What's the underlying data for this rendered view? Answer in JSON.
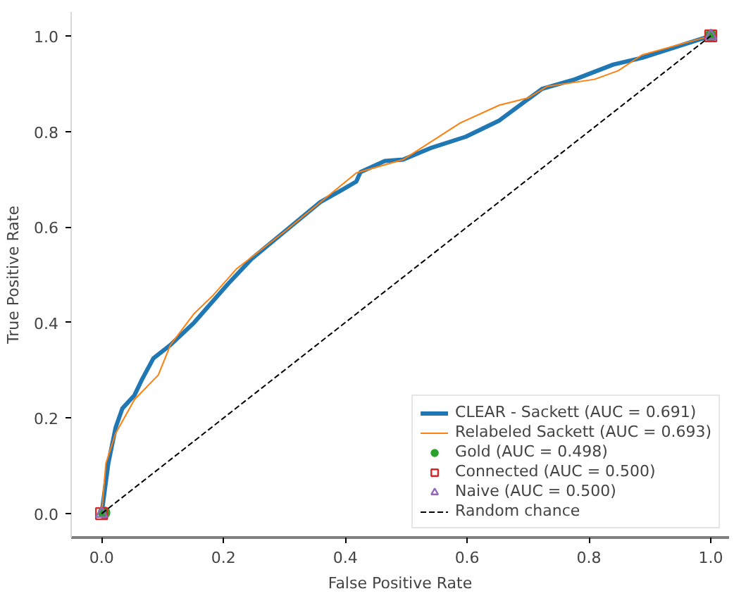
{
  "chart_data": {
    "type": "line",
    "xlabel": "False Positive Rate",
    "ylabel": "True Positive Rate",
    "xlim": [
      -0.05,
      1.03
    ],
    "ylim": [
      -0.05,
      1.05
    ],
    "xticks": [
      {
        "value": 0,
        "label": "0.0"
      },
      0.2,
      0.4,
      0.6,
      0.8,
      {
        "value": 1,
        "label": "1.0"
      }
    ],
    "yticks": [
      {
        "value": 0,
        "label": "0.0"
      },
      0.2,
      0.4,
      0.6,
      0.8,
      {
        "value": 1,
        "label": "1.0"
      }
    ],
    "grid": false,
    "legend": "bottom right",
    "series": [
      {
        "name": "CLEAR - Sackett (AUC = 0.691)",
        "color": "#1f77b4",
        "x": [
          0,
          0.011,
          0.023,
          0.034,
          0.054,
          0.066,
          0.085,
          0.113,
          0.152,
          0.207,
          0.246,
          0.3,
          0.359,
          0.398,
          0.418,
          0.425,
          0.465,
          0.495,
          0.542,
          0.598,
          0.653,
          0.692,
          0.723,
          0.777,
          0.84,
          0.887,
          1
        ],
        "values": [
          0,
          0.105,
          0.18,
          0.22,
          0.248,
          0.28,
          0.325,
          0.353,
          0.4,
          0.48,
          0.533,
          0.59,
          0.652,
          0.68,
          0.695,
          0.715,
          0.738,
          0.741,
          0.766,
          0.789,
          0.823,
          0.86,
          0.889,
          0.909,
          0.94,
          0.954,
          1
        ]
      },
      {
        "name": "Relabeled Sackett (AUC = 0.693)",
        "color": "#ff7f0e",
        "x": [
          0,
          0.007,
          0.023,
          0.054,
          0.093,
          0.113,
          0.152,
          0.183,
          0.222,
          0.3,
          0.418,
          0.495,
          0.589,
          0.653,
          0.7,
          0.731,
          0.809,
          0.848,
          0.887,
          1
        ],
        "values": [
          0,
          0.105,
          0.168,
          0.239,
          0.29,
          0.353,
          0.419,
          0.457,
          0.513,
          0.59,
          0.713,
          0.741,
          0.818,
          0.855,
          0.87,
          0.894,
          0.909,
          0.927,
          0.96,
          1
        ]
      },
      {
        "name": "Gold (AUC = 0.498)",
        "type": "scatter",
        "marker": "circle",
        "color": "#2ca02c",
        "x": [
          0.004,
          1
        ],
        "values": [
          0.002,
          1
        ]
      },
      {
        "name": "Connected (AUC = 0.500)",
        "type": "scatter",
        "marker": "square",
        "color": "#d62728",
        "x": [
          0,
          1
        ],
        "values": [
          0,
          1
        ]
      },
      {
        "name": "Naive (AUC = 0.500)",
        "type": "scatter",
        "marker": "triangle",
        "color": "#9467bd",
        "x": [
          0,
          1
        ],
        "values": [
          0,
          1
        ]
      },
      {
        "name": "Random chance",
        "color": "#000000",
        "line_style": "dashed",
        "x": [
          0,
          1
        ],
        "values": [
          0,
          1
        ]
      }
    ]
  }
}
